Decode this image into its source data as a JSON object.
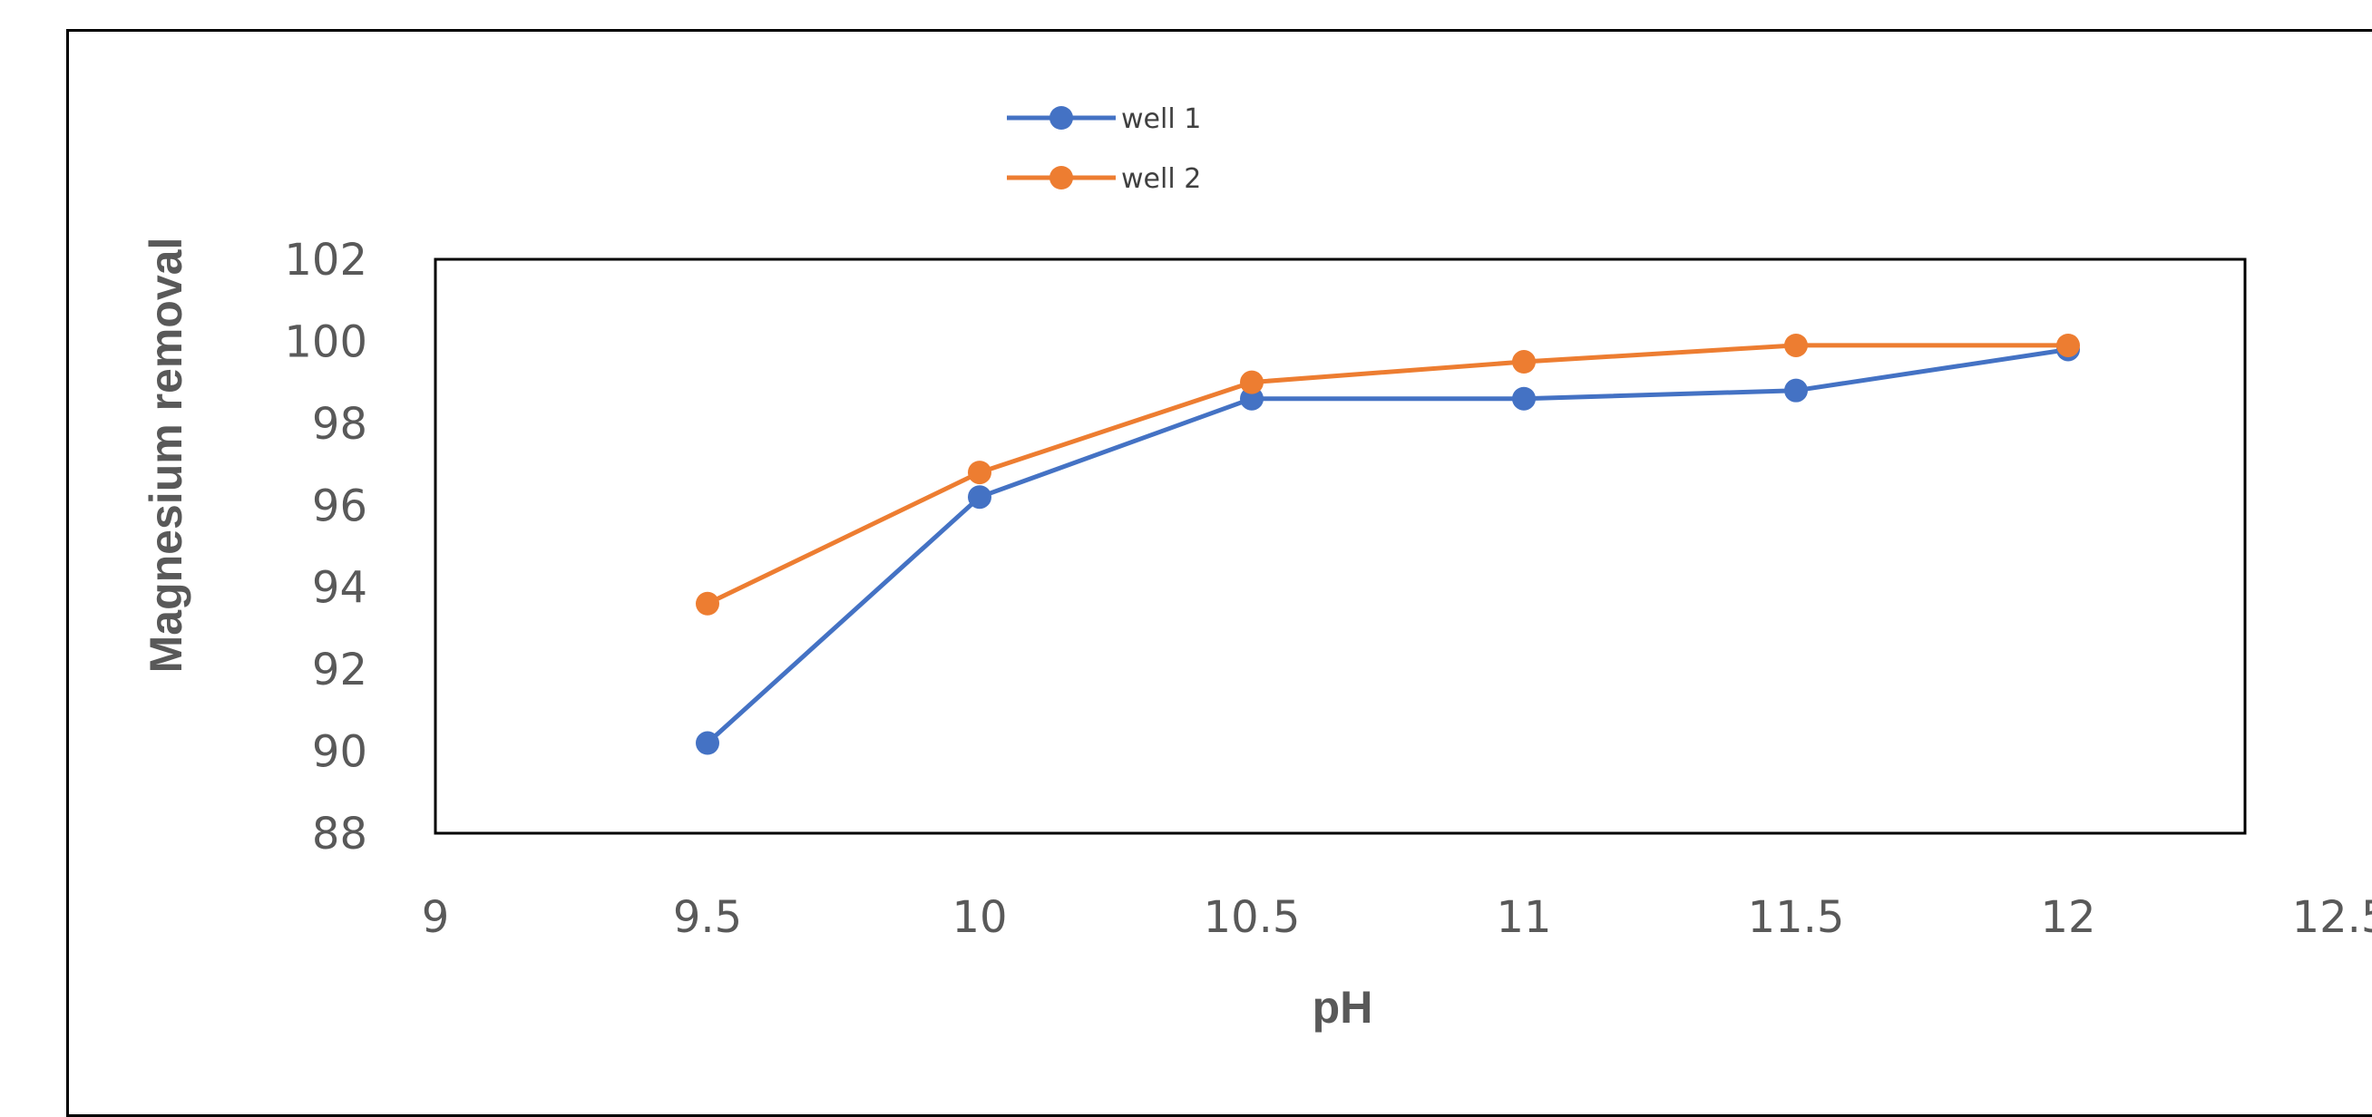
{
  "chart_data": {
    "type": "line",
    "title": "",
    "xlabel": "pH",
    "ylabel": "Magnesium removal",
    "xlim": [
      9,
      12.5
    ],
    "ylim": [
      88,
      102
    ],
    "x_ticks": [
      "9",
      "9.5",
      "10",
      "10.5",
      "11",
      "11.5",
      "12",
      "12.5"
    ],
    "y_ticks": [
      "88",
      "90",
      "92",
      "94",
      "96",
      "98",
      "100",
      "102"
    ],
    "grid": false,
    "legend_position": "top",
    "series": [
      {
        "name": "well 1",
        "color": "#4472C4",
        "x": [
          9.5,
          10,
          10.5,
          11,
          11.5,
          12
        ],
        "y": [
          90.2,
          96.2,
          98.6,
          98.6,
          98.8,
          99.8
        ]
      },
      {
        "name": "well 2",
        "color": "#ED7D31",
        "x": [
          9.5,
          10,
          10.5,
          11,
          11.5,
          12
        ],
        "y": [
          93.6,
          96.8,
          99.0,
          99.5,
          99.9,
          99.9
        ]
      }
    ]
  }
}
